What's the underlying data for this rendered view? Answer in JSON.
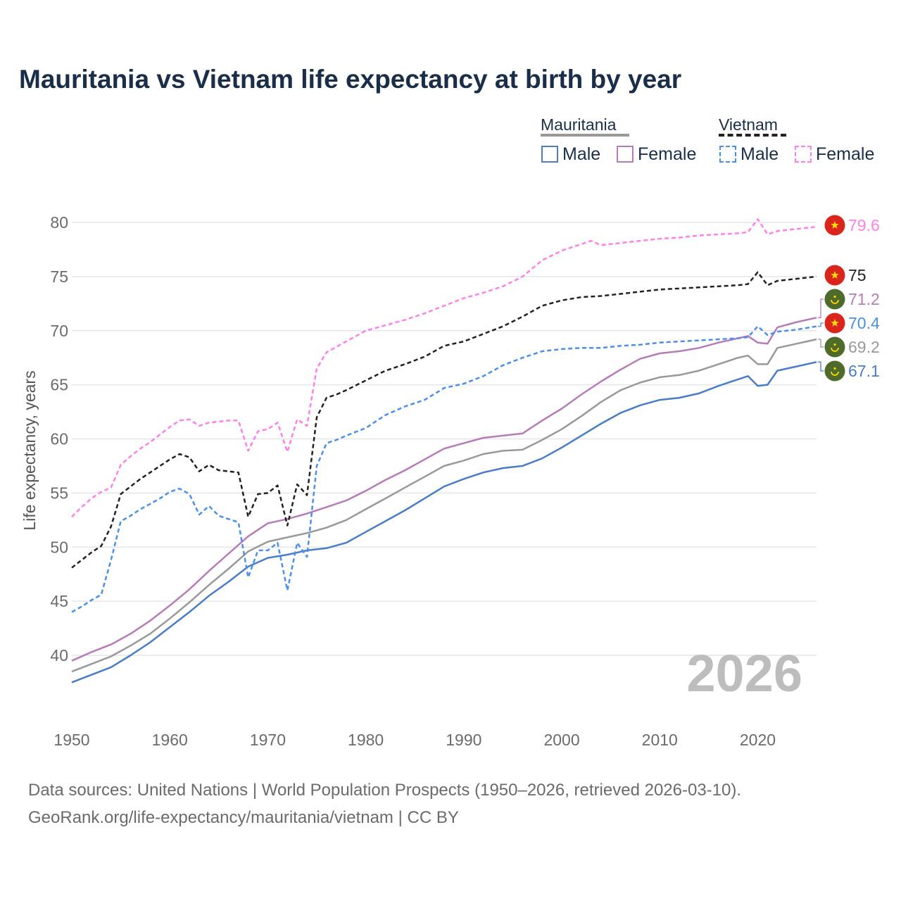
{
  "title": "Mauritania vs Vietnam life expectancy at birth by year",
  "footer": {
    "line1": "Data sources: United Nations | World Population Prospects (1950–2026, retrieved 2026-03-10).",
    "line2": "GeoRank.org/life-expectancy/mauritania/vietnam | CC BY"
  },
  "legend": {
    "mauritania": {
      "label": "Mauritania",
      "male": "Male",
      "female": "Female"
    },
    "vietnam": {
      "label": "Vietnam",
      "male": "Male",
      "female": "Female"
    }
  },
  "colors": {
    "mauritania_total": "#999999",
    "mauritania_male": "#4a7cc8",
    "mauritania_female": "#b57cb8",
    "vietnam_total": "#222222",
    "vietnam_male": "#4a8fe8",
    "vietnam_female": "#ff80e8",
    "grid": "#e6e6e6",
    "axis_text": "#6b6b6b"
  },
  "chart_data": {
    "type": "line",
    "title": "Mauritania vs Vietnam life expectancy at birth by year",
    "xlabel": "",
    "ylabel": "Life expectancy, years",
    "xlim": [
      1950,
      2026
    ],
    "ylim": [
      35,
      82
    ],
    "x_ticks": [
      1950,
      1960,
      1970,
      1980,
      1990,
      2000,
      2010,
      2020
    ],
    "y_ticks": [
      40,
      45,
      50,
      55,
      60,
      65,
      70,
      75,
      80
    ],
    "year_watermark": "2026",
    "grid": true,
    "series": [
      {
        "name": "Mauritania total",
        "key": "mauritania_total",
        "dashed": false,
        "flag": "mauritania",
        "end_label": "69.2",
        "points": [
          [
            1950,
            38.5
          ],
          [
            1952,
            39.2
          ],
          [
            1954,
            39.9
          ],
          [
            1956,
            40.9
          ],
          [
            1958,
            42.0
          ],
          [
            1960,
            43.4
          ],
          [
            1962,
            44.9
          ],
          [
            1964,
            46.5
          ],
          [
            1966,
            48.0
          ],
          [
            1968,
            49.6
          ],
          [
            1970,
            50.5
          ],
          [
            1972,
            50.9
          ],
          [
            1974,
            51.3
          ],
          [
            1976,
            51.8
          ],
          [
            1978,
            52.5
          ],
          [
            1980,
            53.5
          ],
          [
            1982,
            54.5
          ],
          [
            1984,
            55.5
          ],
          [
            1986,
            56.5
          ],
          [
            1988,
            57.5
          ],
          [
            1990,
            58.0
          ],
          [
            1992,
            58.6
          ],
          [
            1994,
            58.9
          ],
          [
            1996,
            59.0
          ],
          [
            1998,
            59.9
          ],
          [
            2000,
            60.9
          ],
          [
            2002,
            62.1
          ],
          [
            2004,
            63.4
          ],
          [
            2006,
            64.5
          ],
          [
            2008,
            65.2
          ],
          [
            2010,
            65.7
          ],
          [
            2012,
            65.9
          ],
          [
            2014,
            66.3
          ],
          [
            2016,
            66.9
          ],
          [
            2018,
            67.5
          ],
          [
            2019,
            67.7
          ],
          [
            2020,
            66.9
          ],
          [
            2021,
            66.9
          ],
          [
            2022,
            68.4
          ],
          [
            2024,
            68.8
          ],
          [
            2026,
            69.2
          ]
        ]
      },
      {
        "name": "Mauritania female",
        "key": "mauritania_female",
        "dashed": false,
        "flag": "mauritania",
        "end_label": "71.2",
        "points": [
          [
            1950,
            39.5
          ],
          [
            1952,
            40.3
          ],
          [
            1954,
            41.0
          ],
          [
            1956,
            42.0
          ],
          [
            1958,
            43.2
          ],
          [
            1960,
            44.6
          ],
          [
            1962,
            46.1
          ],
          [
            1964,
            47.8
          ],
          [
            1966,
            49.4
          ],
          [
            1968,
            51.0
          ],
          [
            1970,
            52.2
          ],
          [
            1972,
            52.6
          ],
          [
            1974,
            53.1
          ],
          [
            1976,
            53.7
          ],
          [
            1978,
            54.3
          ],
          [
            1980,
            55.2
          ],
          [
            1982,
            56.2
          ],
          [
            1984,
            57.1
          ],
          [
            1986,
            58.1
          ],
          [
            1988,
            59.1
          ],
          [
            1990,
            59.6
          ],
          [
            1992,
            60.1
          ],
          [
            1994,
            60.3
          ],
          [
            1996,
            60.5
          ],
          [
            1998,
            61.7
          ],
          [
            2000,
            62.8
          ],
          [
            2002,
            64.1
          ],
          [
            2004,
            65.3
          ],
          [
            2006,
            66.4
          ],
          [
            2008,
            67.4
          ],
          [
            2010,
            67.9
          ],
          [
            2012,
            68.1
          ],
          [
            2014,
            68.4
          ],
          [
            2016,
            68.9
          ],
          [
            2018,
            69.3
          ],
          [
            2019,
            69.5
          ],
          [
            2020,
            68.9
          ],
          [
            2021,
            68.8
          ],
          [
            2022,
            70.3
          ],
          [
            2024,
            70.8
          ],
          [
            2026,
            71.2
          ]
        ]
      },
      {
        "name": "Mauritania male",
        "key": "mauritania_male",
        "dashed": false,
        "flag": "mauritania",
        "end_label": "67.1",
        "points": [
          [
            1950,
            37.5
          ],
          [
            1952,
            38.2
          ],
          [
            1954,
            38.9
          ],
          [
            1956,
            40.0
          ],
          [
            1958,
            41.2
          ],
          [
            1960,
            42.6
          ],
          [
            1962,
            44.0
          ],
          [
            1964,
            45.5
          ],
          [
            1966,
            46.8
          ],
          [
            1968,
            48.2
          ],
          [
            1970,
            49.0
          ],
          [
            1972,
            49.3
          ],
          [
            1974,
            49.7
          ],
          [
            1976,
            49.9
          ],
          [
            1978,
            50.4
          ],
          [
            1980,
            51.4
          ],
          [
            1982,
            52.4
          ],
          [
            1984,
            53.4
          ],
          [
            1986,
            54.5
          ],
          [
            1988,
            55.6
          ],
          [
            1990,
            56.3
          ],
          [
            1992,
            56.9
          ],
          [
            1994,
            57.3
          ],
          [
            1996,
            57.5
          ],
          [
            1998,
            58.2
          ],
          [
            2000,
            59.2
          ],
          [
            2002,
            60.3
          ],
          [
            2004,
            61.4
          ],
          [
            2006,
            62.4
          ],
          [
            2008,
            63.1
          ],
          [
            2010,
            63.6
          ],
          [
            2012,
            63.8
          ],
          [
            2014,
            64.2
          ],
          [
            2016,
            64.9
          ],
          [
            2018,
            65.5
          ],
          [
            2019,
            65.8
          ],
          [
            2020,
            64.9
          ],
          [
            2021,
            65.0
          ],
          [
            2022,
            66.3
          ],
          [
            2024,
            66.7
          ],
          [
            2026,
            67.1
          ]
        ]
      },
      {
        "name": "Vietnam total",
        "key": "vietnam_total",
        "dashed": true,
        "flag": "vietnam",
        "end_label": "75",
        "points": [
          [
            1950,
            48.1
          ],
          [
            1951,
            48.8
          ],
          [
            1952,
            49.5
          ],
          [
            1953,
            50.1
          ],
          [
            1954,
            51.9
          ],
          [
            1955,
            54.9
          ],
          [
            1956,
            55.6
          ],
          [
            1957,
            56.3
          ],
          [
            1958,
            56.9
          ],
          [
            1959,
            57.5
          ],
          [
            1960,
            58.1
          ],
          [
            1961,
            58.6
          ],
          [
            1962,
            58.3
          ],
          [
            1963,
            57.0
          ],
          [
            1964,
            57.6
          ],
          [
            1965,
            57.1
          ],
          [
            1966,
            57.0
          ],
          [
            1967,
            56.9
          ],
          [
            1968,
            52.8
          ],
          [
            1969,
            54.9
          ],
          [
            1970,
            55.0
          ],
          [
            1971,
            55.7
          ],
          [
            1972,
            52.0
          ],
          [
            1973,
            55.8
          ],
          [
            1974,
            54.8
          ],
          [
            1975,
            62.0
          ],
          [
            1976,
            63.8
          ],
          [
            1977,
            64.1
          ],
          [
            1978,
            64.5
          ],
          [
            1980,
            65.4
          ],
          [
            1982,
            66.3
          ],
          [
            1984,
            66.9
          ],
          [
            1986,
            67.6
          ],
          [
            1988,
            68.6
          ],
          [
            1990,
            69.0
          ],
          [
            1992,
            69.7
          ],
          [
            1994,
            70.4
          ],
          [
            1996,
            71.3
          ],
          [
            1998,
            72.3
          ],
          [
            2000,
            72.8
          ],
          [
            2002,
            73.1
          ],
          [
            2004,
            73.2
          ],
          [
            2006,
            73.4
          ],
          [
            2008,
            73.6
          ],
          [
            2010,
            73.8
          ],
          [
            2012,
            73.9
          ],
          [
            2014,
            74.0
          ],
          [
            2016,
            74.1
          ],
          [
            2018,
            74.2
          ],
          [
            2019,
            74.3
          ],
          [
            2020,
            75.4
          ],
          [
            2021,
            74.2
          ],
          [
            2022,
            74.6
          ],
          [
            2024,
            74.8
          ],
          [
            2026,
            75.0
          ]
        ]
      },
      {
        "name": "Vietnam female",
        "key": "vietnam_female",
        "dashed": true,
        "flag": "vietnam",
        "end_label": "79.6",
        "points": [
          [
            1950,
            52.8
          ],
          [
            1951,
            53.7
          ],
          [
            1952,
            54.5
          ],
          [
            1953,
            55.1
          ],
          [
            1954,
            55.5
          ],
          [
            1955,
            57.6
          ],
          [
            1956,
            58.4
          ],
          [
            1957,
            59.1
          ],
          [
            1958,
            59.7
          ],
          [
            1959,
            60.4
          ],
          [
            1960,
            61.1
          ],
          [
            1961,
            61.7
          ],
          [
            1962,
            61.8
          ],
          [
            1963,
            61.2
          ],
          [
            1964,
            61.5
          ],
          [
            1965,
            61.6
          ],
          [
            1966,
            61.7
          ],
          [
            1967,
            61.7
          ],
          [
            1968,
            58.9
          ],
          [
            1969,
            60.7
          ],
          [
            1970,
            60.9
          ],
          [
            1971,
            61.5
          ],
          [
            1972,
            58.8
          ],
          [
            1973,
            61.8
          ],
          [
            1974,
            61.2
          ],
          [
            1975,
            66.5
          ],
          [
            1976,
            68.0
          ],
          [
            1977,
            68.5
          ],
          [
            1978,
            69.0
          ],
          [
            1980,
            70.0
          ],
          [
            1982,
            70.5
          ],
          [
            1984,
            71.0
          ],
          [
            1986,
            71.6
          ],
          [
            1988,
            72.3
          ],
          [
            1990,
            73.0
          ],
          [
            1992,
            73.5
          ],
          [
            1994,
            74.1
          ],
          [
            1996,
            75.0
          ],
          [
            1998,
            76.5
          ],
          [
            2000,
            77.4
          ],
          [
            2002,
            78.0
          ],
          [
            2003,
            78.3
          ],
          [
            2004,
            77.9
          ],
          [
            2006,
            78.1
          ],
          [
            2008,
            78.3
          ],
          [
            2010,
            78.5
          ],
          [
            2012,
            78.6
          ],
          [
            2014,
            78.8
          ],
          [
            2016,
            78.9
          ],
          [
            2018,
            79.0
          ],
          [
            2019,
            79.1
          ],
          [
            2020,
            80.3
          ],
          [
            2021,
            78.9
          ],
          [
            2022,
            79.2
          ],
          [
            2024,
            79.4
          ],
          [
            2026,
            79.6
          ]
        ]
      },
      {
        "name": "Vietnam male",
        "key": "vietnam_male",
        "dashed": true,
        "flag": "vietnam",
        "end_label": "70.4",
        "points": [
          [
            1950,
            44.0
          ],
          [
            1951,
            44.5
          ],
          [
            1952,
            45.1
          ],
          [
            1953,
            45.6
          ],
          [
            1954,
            48.8
          ],
          [
            1955,
            52.4
          ],
          [
            1956,
            52.9
          ],
          [
            1957,
            53.5
          ],
          [
            1958,
            54.0
          ],
          [
            1959,
            54.5
          ],
          [
            1960,
            55.1
          ],
          [
            1961,
            55.4
          ],
          [
            1962,
            54.9
          ],
          [
            1963,
            53.0
          ],
          [
            1964,
            53.8
          ],
          [
            1965,
            52.9
          ],
          [
            1966,
            52.6
          ],
          [
            1967,
            52.3
          ],
          [
            1968,
            47.2
          ],
          [
            1969,
            49.7
          ],
          [
            1970,
            49.7
          ],
          [
            1971,
            50.4
          ],
          [
            1972,
            46.0
          ],
          [
            1973,
            50.4
          ],
          [
            1974,
            49.1
          ],
          [
            1975,
            57.5
          ],
          [
            1976,
            59.6
          ],
          [
            1977,
            59.9
          ],
          [
            1978,
            60.3
          ],
          [
            1980,
            61.0
          ],
          [
            1982,
            62.2
          ],
          [
            1984,
            63.0
          ],
          [
            1986,
            63.6
          ],
          [
            1988,
            64.7
          ],
          [
            1990,
            65.1
          ],
          [
            1992,
            65.8
          ],
          [
            1994,
            66.8
          ],
          [
            1996,
            67.5
          ],
          [
            1998,
            68.1
          ],
          [
            2000,
            68.3
          ],
          [
            2002,
            68.4
          ],
          [
            2004,
            68.4
          ],
          [
            2006,
            68.6
          ],
          [
            2008,
            68.7
          ],
          [
            2010,
            68.9
          ],
          [
            2012,
            69.0
          ],
          [
            2014,
            69.1
          ],
          [
            2016,
            69.2
          ],
          [
            2018,
            69.3
          ],
          [
            2019,
            69.4
          ],
          [
            2020,
            70.4
          ],
          [
            2021,
            69.6
          ],
          [
            2022,
            69.9
          ],
          [
            2024,
            70.1
          ],
          [
            2026,
            70.4
          ]
        ]
      }
    ]
  }
}
